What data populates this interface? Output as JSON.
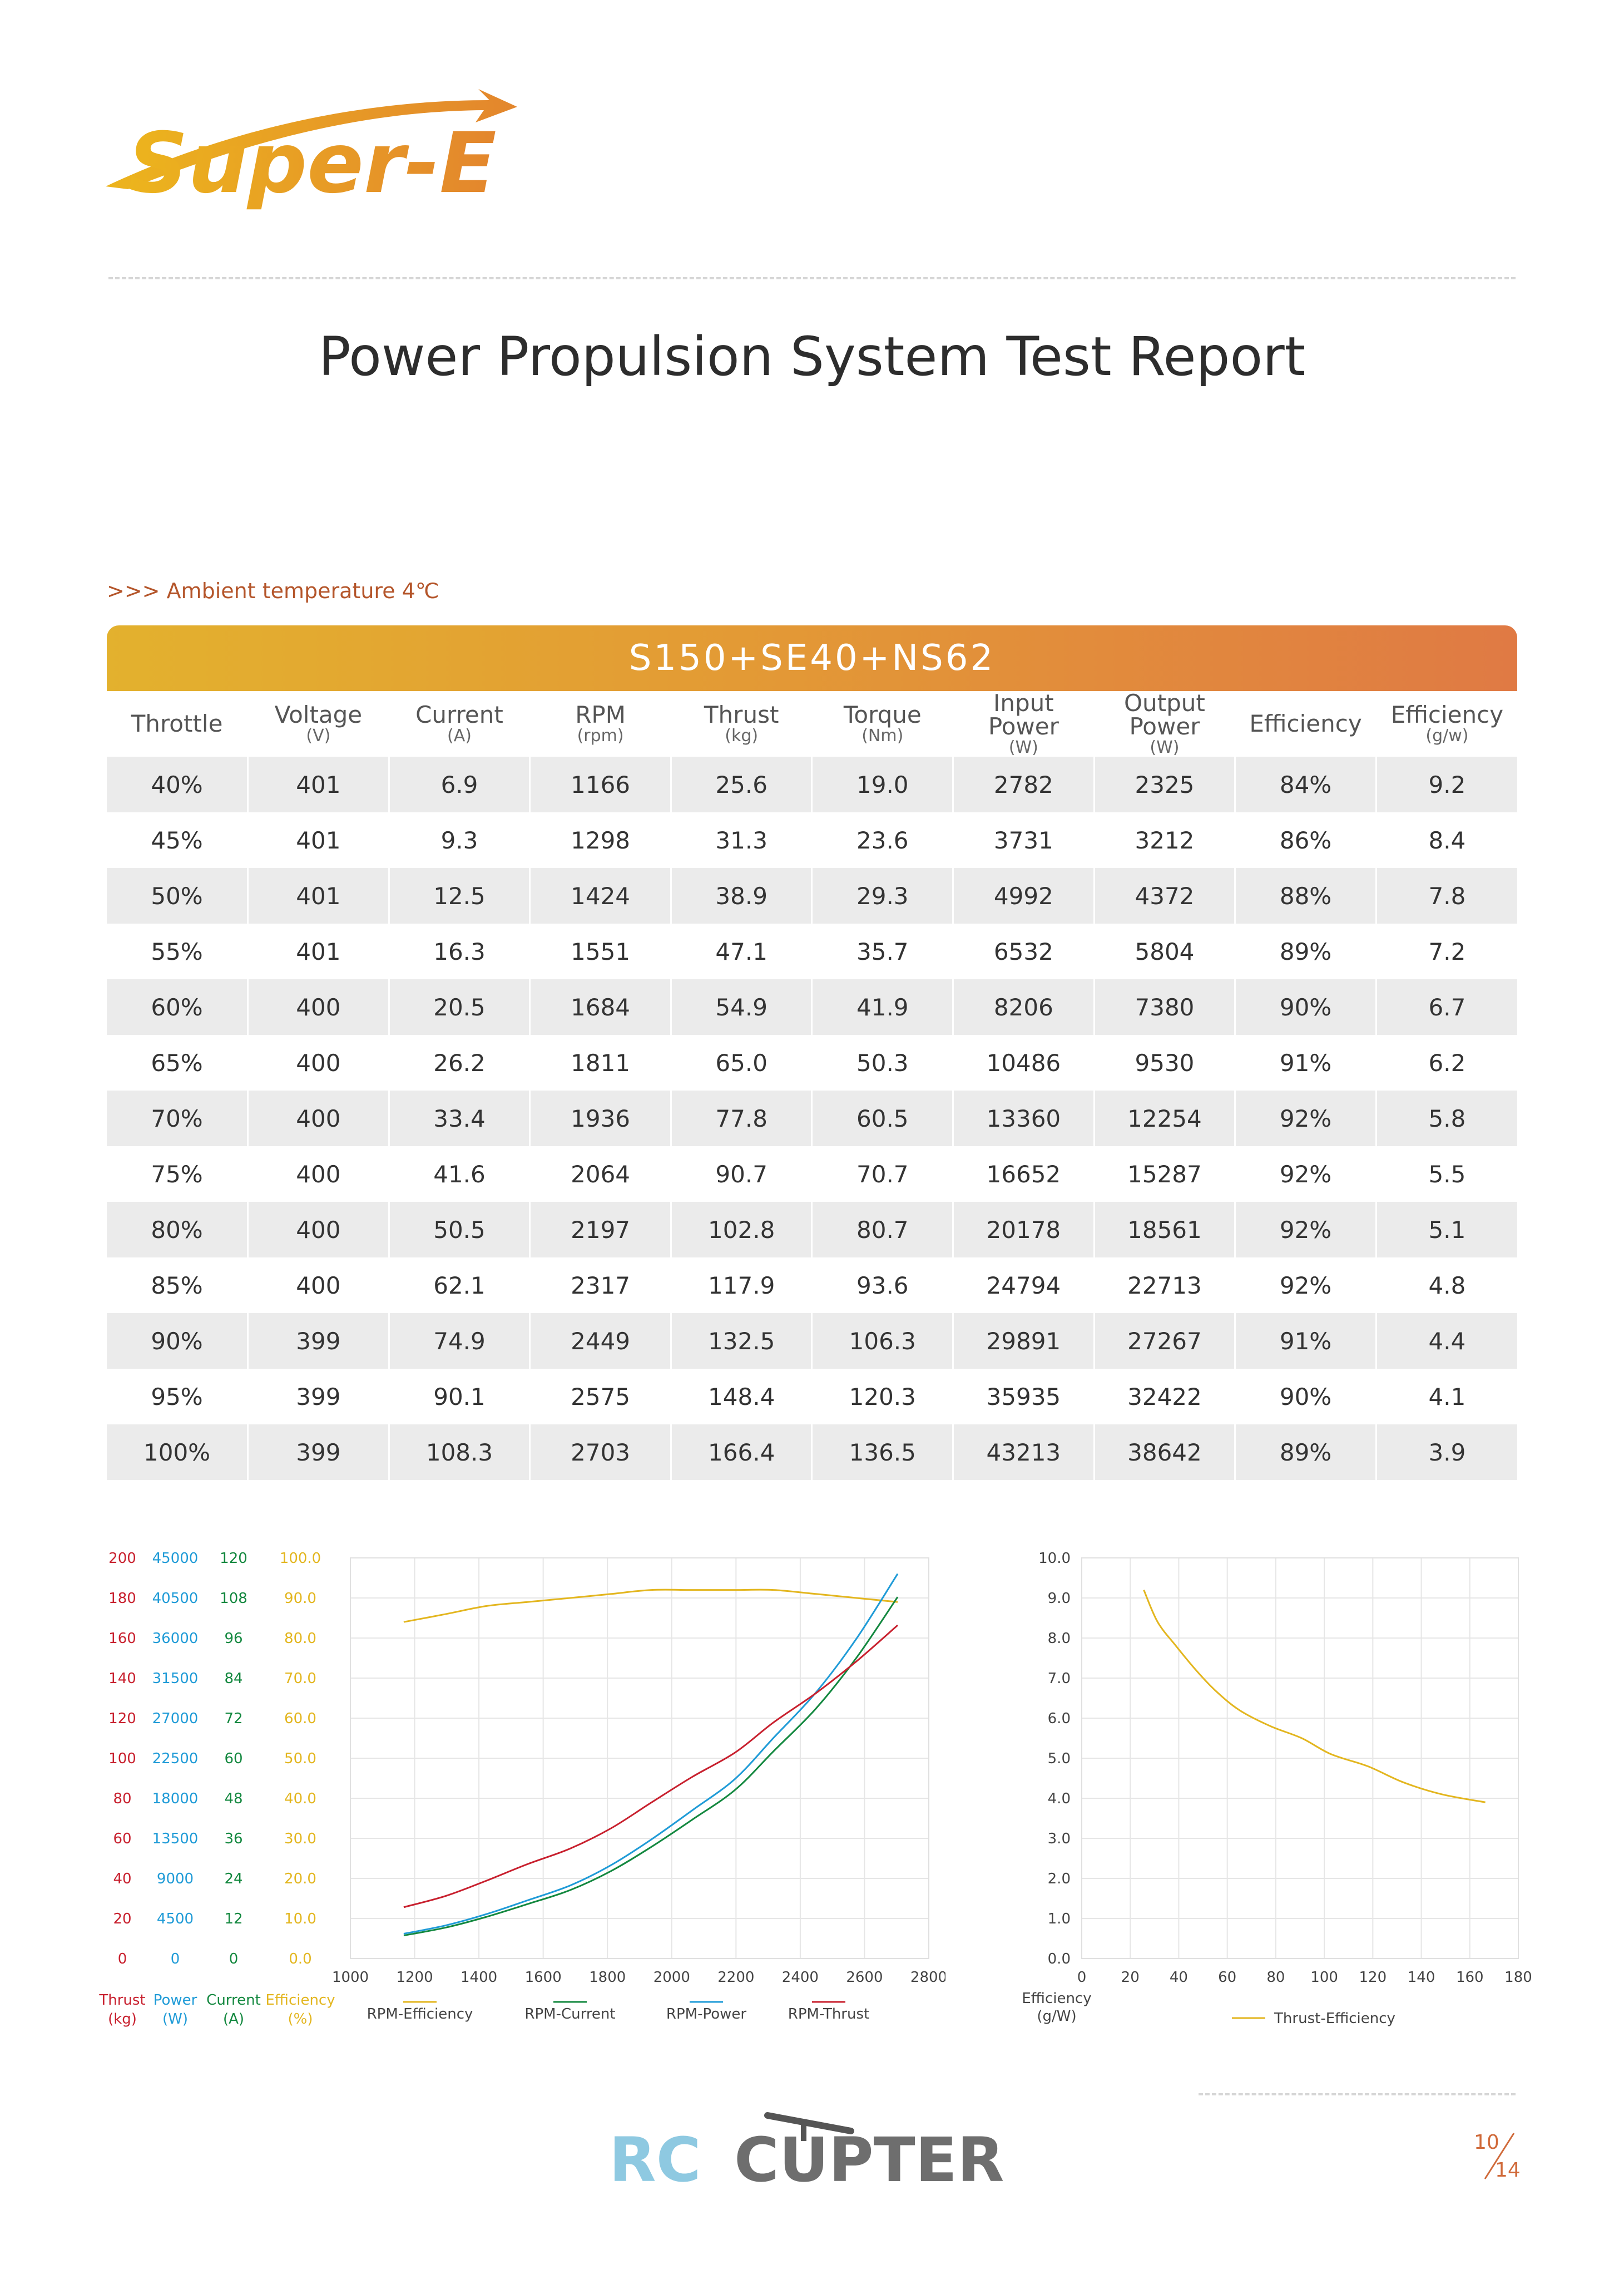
{
  "brand": {
    "logo_text": "Super-E"
  },
  "title": "Power Propulsion System Test Report",
  "ambient": ">>> Ambient temperature 4℃",
  "table": {
    "banner": "S150+SE40+NS62",
    "headers": [
      {
        "label": "Throttle",
        "unit": ""
      },
      {
        "label": "Voltage",
        "unit": "(V)"
      },
      {
        "label": "Current",
        "unit": "(A)"
      },
      {
        "label": "RPM",
        "unit": "(rpm)"
      },
      {
        "label": "Thrust",
        "unit": "(kg)"
      },
      {
        "label": "Torque",
        "unit": "(Nm)"
      },
      {
        "label": "Input Power",
        "unit": "(W)"
      },
      {
        "label": "Output Power",
        "unit": "(W)"
      },
      {
        "label": "Efficiency",
        "unit": ""
      },
      {
        "label": "Efficiency",
        "unit": "(g/w)"
      }
    ],
    "rows": [
      [
        "40%",
        "401",
        "6.9",
        "1166",
        "25.6",
        "19.0",
        "2782",
        "2325",
        "84%",
        "9.2"
      ],
      [
        "45%",
        "401",
        "9.3",
        "1298",
        "31.3",
        "23.6",
        "3731",
        "3212",
        "86%",
        "8.4"
      ],
      [
        "50%",
        "401",
        "12.5",
        "1424",
        "38.9",
        "29.3",
        "4992",
        "4372",
        "88%",
        "7.8"
      ],
      [
        "55%",
        "401",
        "16.3",
        "1551",
        "47.1",
        "35.7",
        "6532",
        "5804",
        "89%",
        "7.2"
      ],
      [
        "60%",
        "400",
        "20.5",
        "1684",
        "54.9",
        "41.9",
        "8206",
        "7380",
        "90%",
        "6.7"
      ],
      [
        "65%",
        "400",
        "26.2",
        "1811",
        "65.0",
        "50.3",
        "10486",
        "9530",
        "91%",
        "6.2"
      ],
      [
        "70%",
        "400",
        "33.4",
        "1936",
        "77.8",
        "60.5",
        "13360",
        "12254",
        "92%",
        "5.8"
      ],
      [
        "75%",
        "400",
        "41.6",
        "2064",
        "90.7",
        "70.7",
        "16652",
        "15287",
        "92%",
        "5.5"
      ],
      [
        "80%",
        "400",
        "50.5",
        "2197",
        "102.8",
        "80.7",
        "20178",
        "18561",
        "92%",
        "5.1"
      ],
      [
        "85%",
        "400",
        "62.1",
        "2317",
        "117.9",
        "93.6",
        "24794",
        "22713",
        "92%",
        "4.8"
      ],
      [
        "90%",
        "399",
        "74.9",
        "2449",
        "132.5",
        "106.3",
        "29891",
        "27267",
        "91%",
        "4.4"
      ],
      [
        "95%",
        "399",
        "90.1",
        "2575",
        "148.4",
        "120.3",
        "35935",
        "32422",
        "90%",
        "4.1"
      ],
      [
        "100%",
        "399",
        "108.3",
        "2703",
        "166.4",
        "136.5",
        "43213",
        "38642",
        "89%",
        "3.9"
      ]
    ]
  },
  "chart_data": [
    {
      "type": "line",
      "xlabel": "",
      "x": [
        1166,
        1298,
        1424,
        1551,
        1684,
        1811,
        1936,
        2064,
        2197,
        2317,
        2449,
        2575,
        2703
      ],
      "xlim": [
        1000,
        2800
      ],
      "xticks": [
        "1000",
        "1200",
        "1400",
        "1600",
        "1800",
        "2000",
        "2200",
        "2400",
        "2600",
        "2800"
      ],
      "axes": [
        {
          "name": "Thrust",
          "unit": "(kg)",
          "color": "#c8202e",
          "ticks": [
            "0",
            "20",
            "40",
            "60",
            "80",
            "100",
            "120",
            "140",
            "160",
            "180",
            "200"
          ],
          "range": [
            0,
            200
          ]
        },
        {
          "name": "Power",
          "unit": "(W)",
          "color": "#1f9bd7",
          "ticks": [
            "0",
            "4500",
            "9000",
            "13500",
            "18000",
            "22500",
            "27000",
            "31500",
            "36000",
            "40500",
            "45000"
          ],
          "range": [
            0,
            45000
          ]
        },
        {
          "name": "Current",
          "unit": "(A)",
          "color": "#13883f",
          "ticks": [
            "0",
            "12",
            "24",
            "36",
            "48",
            "60",
            "72",
            "84",
            "96",
            "108",
            "120"
          ],
          "range": [
            0,
            120
          ]
        },
        {
          "name": "Efficiency",
          "unit": "(%)",
          "color": "#e3b61f",
          "ticks": [
            "0.0",
            "10.0",
            "20.0",
            "30.0",
            "40.0",
            "50.0",
            "60.0",
            "70.0",
            "80.0",
            "90.0",
            "100.0"
          ],
          "range": [
            0,
            100
          ]
        }
      ],
      "series": [
        {
          "name": "RPM-Efficiency",
          "axis": 3,
          "color": "#e3b61f",
          "values": [
            84,
            86,
            88,
            89,
            90,
            91,
            92,
            92,
            92,
            92,
            91,
            90,
            89
          ]
        },
        {
          "name": "RPM-Current",
          "axis": 2,
          "color": "#13883f",
          "values": [
            6.9,
            9.3,
            12.5,
            16.3,
            20.5,
            26.2,
            33.4,
            41.6,
            50.5,
            62.1,
            74.9,
            90.1,
            108.3
          ]
        },
        {
          "name": "RPM-Power",
          "axis": 1,
          "color": "#1f9bd7",
          "values": [
            2782,
            3731,
            4992,
            6532,
            8206,
            10486,
            13360,
            16652,
            20178,
            24794,
            29891,
            35935,
            43213
          ]
        },
        {
          "name": "RPM-Thrust",
          "axis": 0,
          "color": "#c8202e",
          "values": [
            25.6,
            31.3,
            38.9,
            47.1,
            54.9,
            65.0,
            77.8,
            90.7,
            102.8,
            117.9,
            132.5,
            148.4,
            166.4
          ]
        }
      ]
    },
    {
      "type": "line",
      "ylabel": "Efficiency",
      "yunit": "(g/W)",
      "xlim": [
        0,
        180
      ],
      "ylim": [
        0,
        10
      ],
      "xticks": [
        "0",
        "20",
        "40",
        "60",
        "80",
        "100",
        "120",
        "140",
        "160",
        "180"
      ],
      "yticks": [
        "0.0",
        "1.0",
        "2.0",
        "3.0",
        "4.0",
        "5.0",
        "6.0",
        "7.0",
        "8.0",
        "9.0",
        "10.0"
      ],
      "series": [
        {
          "name": "Thrust-Efficiency",
          "color": "#e3b61f",
          "x": [
            25.6,
            31.3,
            38.9,
            47.1,
            54.9,
            65.0,
            77.8,
            90.7,
            102.8,
            117.9,
            132.5,
            148.4,
            166.4
          ],
          "values": [
            9.2,
            8.4,
            7.8,
            7.2,
            6.7,
            6.2,
            5.8,
            5.5,
            5.1,
            4.8,
            4.4,
            4.1,
            3.9
          ]
        }
      ]
    }
  ],
  "footer": {
    "brand_left": "RC",
    "brand_right": "CUPTER",
    "page_current": "10",
    "page_total": "14"
  }
}
